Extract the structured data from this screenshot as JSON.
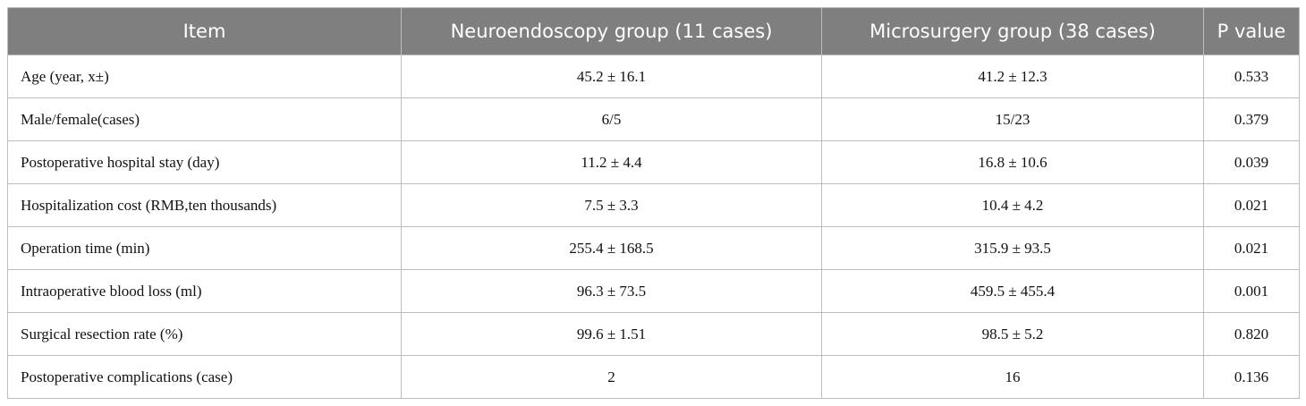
{
  "table": {
    "header": [
      "Item",
      "Neuroendoscopy group (11 cases)",
      "Microsurgery group (38 cases)",
      "P value"
    ],
    "rows": [
      [
        "Age (year, x±)",
        "45.2 ± 16.1",
        "41.2 ± 12.3",
        "0.533"
      ],
      [
        "Male/female(cases)",
        "6/5",
        "15/23",
        "0.379"
      ],
      [
        "Postoperative hospital stay (day)",
        "11.2 ± 4.4",
        "16.8 ± 10.6",
        "0.039"
      ],
      [
        "Hospitalization cost (RMB,ten thousands)",
        "7.5 ± 3.3",
        "10.4 ± 4.2",
        "0.021"
      ],
      [
        "Operation time (min)",
        "255.4 ± 168.5",
        "315.9 ± 93.5",
        "0.021"
      ],
      [
        "Intraoperative blood loss (ml)",
        "96.3 ± 73.5",
        "459.5 ± 455.4",
        "0.001"
      ],
      [
        "Surgical resection rate (%)",
        "99.6 ± 1.51",
        "98.5 ± 5.2",
        "0.820"
      ],
      [
        "Postoperative complications (case)",
        "2",
        "16",
        "0.136"
      ]
    ]
  }
}
